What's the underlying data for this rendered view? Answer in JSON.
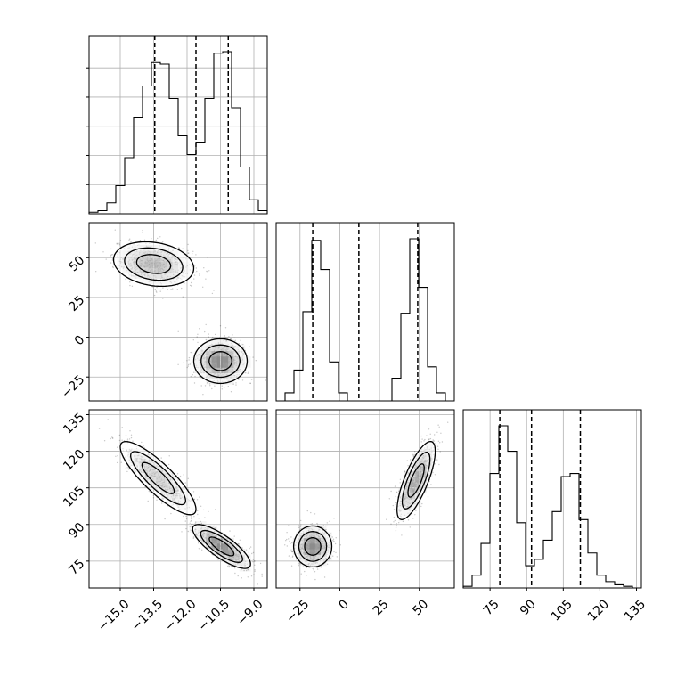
{
  "chart_data": {
    "type": "corner",
    "grid": true,
    "parameters": [
      {
        "key": "p0",
        "range": [
          -16.4,
          -8.4
        ],
        "ticks": [
          -15.0,
          -13.5,
          -12.0,
          -10.5,
          -9.0
        ],
        "tick_labels": [
          "−15.0",
          "−13.5",
          "−12.0",
          "−10.5",
          "−9.0"
        ],
        "quantiles": [
          -13.45,
          -11.6,
          -10.15
        ]
      },
      {
        "key": "p1",
        "range": [
          -40,
          72
        ],
        "ticks": [
          -25,
          0,
          25,
          50
        ],
        "tick_labels": [
          "−25",
          "0",
          "25",
          "50"
        ],
        "quantiles": [
          -17,
          12,
          49
        ]
      },
      {
        "key": "p2",
        "range": [
          64,
          137
        ],
        "ticks": [
          75,
          90,
          105,
          120,
          135
        ],
        "tick_labels": [
          "75",
          "90",
          "105",
          "120",
          "135"
        ],
        "quantiles": [
          79,
          92,
          112
        ]
      }
    ],
    "histograms": [
      {
        "param": "p0",
        "edges": [
          -16.4,
          -16.0,
          -15.6,
          -15.2,
          -14.8,
          -14.4,
          -14.0,
          -13.6,
          -13.2,
          -12.8,
          -12.4,
          -12.0,
          -11.6,
          -11.2,
          -10.8,
          -10.4,
          -10.0,
          -9.6,
          -9.2,
          -8.8,
          -8.4
        ],
        "counts": [
          0.01,
          0.02,
          0.07,
          0.18,
          0.36,
          0.62,
          0.82,
          0.97,
          0.96,
          0.74,
          0.5,
          0.38,
          0.46,
          0.74,
          1.03,
          1.04,
          0.68,
          0.3,
          0.09,
          0.02
        ]
      },
      {
        "param": "p1",
        "edges": [
          -40.0,
          -34.4,
          -28.8,
          -23.2,
          -17.6,
          -12.0,
          -6.4,
          -0.8,
          4.8,
          10.4,
          16.0,
          21.6,
          27.2,
          32.8,
          38.4,
          44.0,
          49.6,
          55.2,
          60.8,
          66.4,
          72.0
        ],
        "counts": [
          0.0,
          0.05,
          0.19,
          0.55,
          0.99,
          0.81,
          0.24,
          0.05,
          0.0,
          0.0,
          0.0,
          0.0,
          0.0,
          0.14,
          0.54,
          1.0,
          0.7,
          0.21,
          0.05,
          0.0
        ]
      },
      {
        "param": "p2",
        "edges": [
          64.0,
          67.65,
          71.3,
          74.95,
          78.6,
          82.25,
          85.9,
          89.55,
          93.2,
          96.85,
          100.5,
          104.15,
          107.8,
          111.45,
          115.1,
          118.75,
          122.4,
          126.05,
          129.7,
          133.35,
          137.0
        ],
        "counts": [
          0.01,
          0.08,
          0.28,
          0.72,
          1.02,
          0.86,
          0.41,
          0.14,
          0.18,
          0.3,
          0.48,
          0.7,
          0.72,
          0.43,
          0.22,
          0.08,
          0.04,
          0.02,
          0.01,
          0.0
        ]
      }
    ],
    "pairs": [
      {
        "x": "p0",
        "y": "p1",
        "modes": [
          {
            "mean": [
              -13.5,
              46
            ],
            "sd": [
              0.9,
              7
            ],
            "rho": -0.2,
            "weight": 1
          },
          {
            "mean": [
              -10.5,
              -15
            ],
            "sd": [
              0.6,
              7
            ],
            "rho": 0.0,
            "weight": 1
          }
        ]
      },
      {
        "x": "p0",
        "y": "p2",
        "modes": [
          {
            "mean": [
              -13.3,
              109
            ],
            "sd": [
              0.85,
              7.5
            ],
            "rho": -0.85,
            "weight": 1
          },
          {
            "mean": [
              -10.45,
              81
            ],
            "sd": [
              0.65,
              4.5
            ],
            "rho": -0.8,
            "weight": 1
          }
        ]
      },
      {
        "x": "p1",
        "y": "p2",
        "modes": [
          {
            "mean": [
              -17,
              81
            ],
            "sd": [
              6,
              4.2
            ],
            "rho": 0.0,
            "weight": 1
          },
          {
            "mean": [
              48,
              108
            ],
            "sd": [
              6,
              8
            ],
            "rho": 0.75,
            "weight": 1
          }
        ]
      }
    ]
  }
}
